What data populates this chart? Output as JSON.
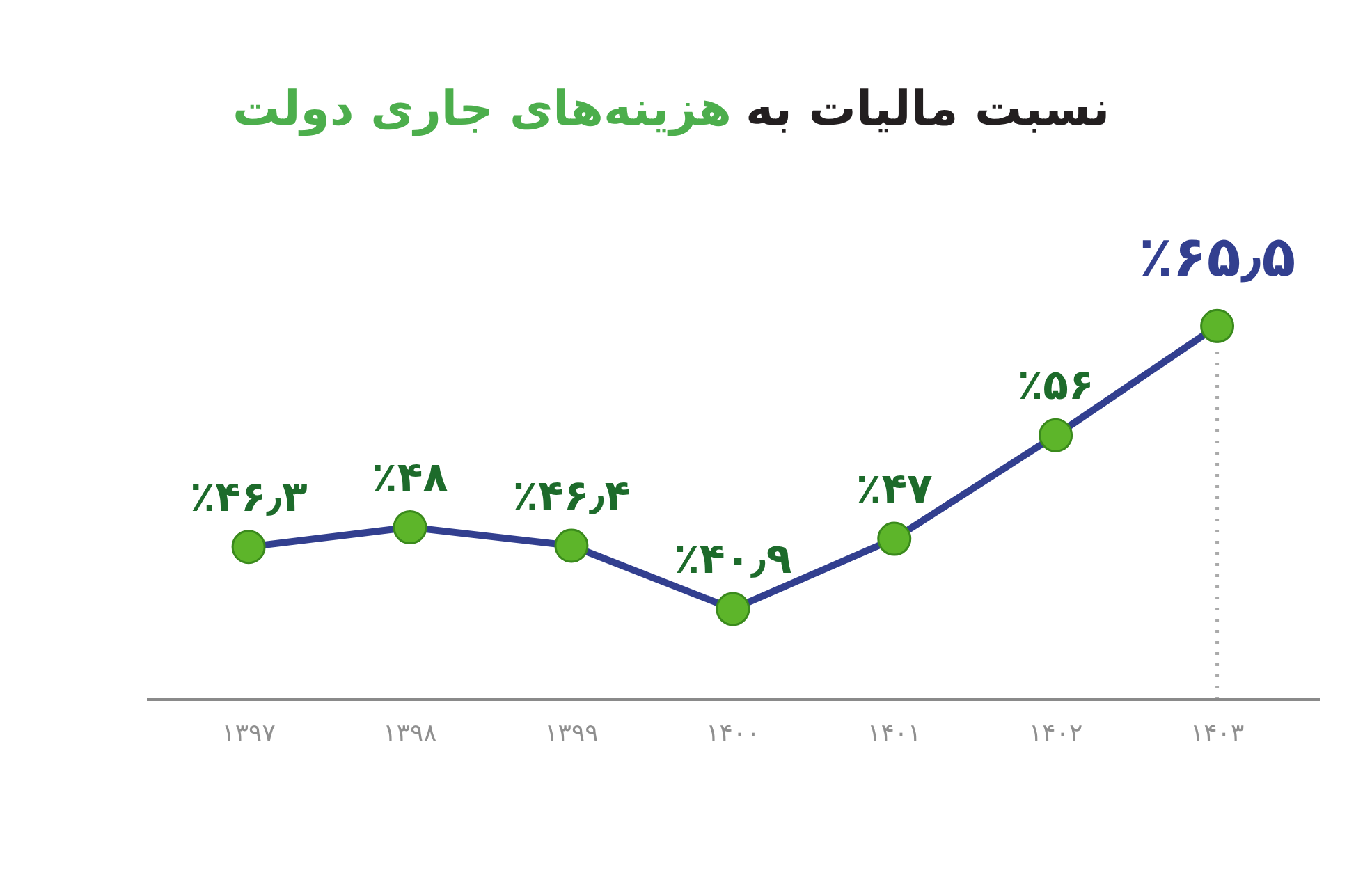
{
  "chart_data": {
    "type": "line",
    "title": "نسبت مالیات به هزینه‌های جاری دولت",
    "categories": [
      "۱۳۹۷",
      "۱۳۹۸",
      "۱۳۹۹",
      "۱۴۰۰",
      "۱۴۰۱",
      "۱۴۰۲",
      "۱۴۰۳"
    ],
    "values": [
      46.3,
      48,
      46.4,
      40.9,
      47,
      56,
      65.5
    ],
    "color": "#323f8f",
    "colors": [
      "#5db52a",
      "#5db52a",
      "#5db52a",
      "#5db52a",
      "#5db52a",
      "#5db52a",
      "#5db52a"
    ],
    "value_labels": [
      "٪۴۶٫۳",
      "٪۴۸",
      "٪۴۶٫۴",
      "٪۴۰٫۹",
      "٪۴۷",
      "٪۵۶",
      "٪۶۵٫۵"
    ],
    "marker": "circle",
    "line_style": "solid",
    "grid": false,
    "tick_labels": "x",
    "ref_lines": [
      {
        "axis": "x",
        "value": "۱۴۰۳",
        "color": "#aaaaaa",
        "line_style": "dotted"
      }
    ]
  }
}
